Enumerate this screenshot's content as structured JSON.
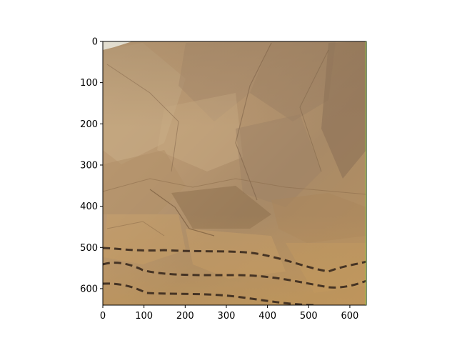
{
  "figure": {
    "image_description_name": "crumpled-brown-paper-photo",
    "y_axis": {
      "ticks": [
        {
          "value": 0,
          "label": "0"
        },
        {
          "value": 100,
          "label": "100"
        },
        {
          "value": 200,
          "label": "200"
        },
        {
          "value": 300,
          "label": "300"
        },
        {
          "value": 400,
          "label": "400"
        },
        {
          "value": 500,
          "label": "500"
        },
        {
          "value": 600,
          "label": "600"
        }
      ],
      "range": [
        0,
        640
      ],
      "inverted": true
    },
    "x_axis": {
      "ticks": [
        {
          "value": 0,
          "label": "0"
        },
        {
          "value": 100,
          "label": "100"
        },
        {
          "value": 200,
          "label": "200"
        },
        {
          "value": 300,
          "label": "300"
        },
        {
          "value": 400,
          "label": "400"
        },
        {
          "value": 500,
          "label": "500"
        },
        {
          "value": 600,
          "label": "600"
        }
      ],
      "range": [
        0,
        640
      ]
    },
    "colors": {
      "paper_base": "#b8966a",
      "paper_light": "#d4b78f",
      "paper_dark": "#7d5e3d",
      "dash_line": "#3a2a1e",
      "frame_edge": "#7fd03b"
    }
  }
}
